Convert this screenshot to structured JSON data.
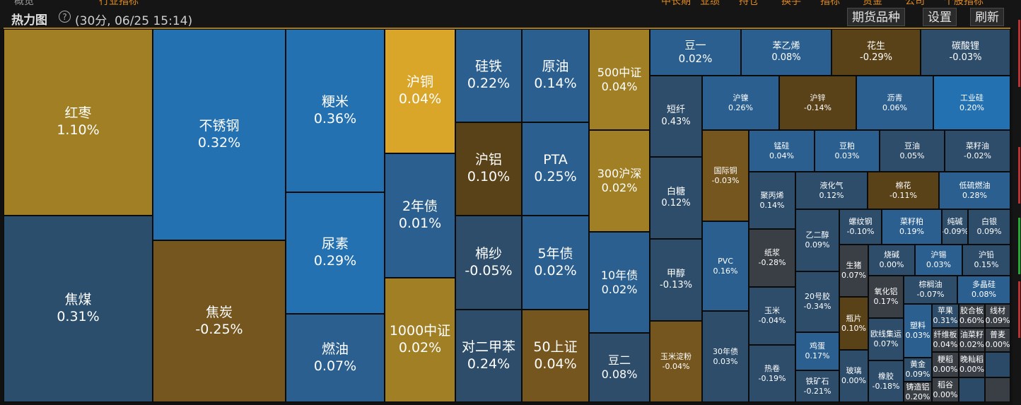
{
  "top_tabs": [
    "概览",
    "行业指标",
    "中长期",
    "业绩",
    "持仓",
    "换手",
    "指标",
    "资金",
    "公司",
    "个股指标"
  ],
  "header": {
    "title": "热力图",
    "help_icon": "question-circle-icon",
    "subtitle": "(30分, 06/25 15:14)",
    "buttons": [
      "期货品种",
      "设置",
      "刷新"
    ]
  },
  "colors": {
    "gold": "#a17f24",
    "gold_bright": "#d9a62a",
    "brown": "#76561f",
    "brown_dark": "#5a4218",
    "blue": "#2471b2",
    "blue_mid": "#2a5f8f",
    "slate": "#2d4d6a",
    "slate_dark": "#2a3f55",
    "gray": "#3a3f46"
  },
  "chart_data": {
    "type": "heatmap",
    "tiles": [
      {
        "name": "红枣",
        "value": "1.10%",
        "color": "#a17f24"
      },
      {
        "name": "焦煤",
        "value": "0.31%",
        "color": "#2c4e6d"
      },
      {
        "name": "不锈钢",
        "value": "0.32%",
        "color": "#2471b2"
      },
      {
        "name": "焦炭",
        "value": "-0.25%",
        "color": "#76561f"
      },
      {
        "name": "粳米",
        "value": "0.36%",
        "color": "#2471b2"
      },
      {
        "name": "尿素",
        "value": "0.29%",
        "color": "#2471b2"
      },
      {
        "name": "燃油",
        "value": "0.07%",
        "color": "#2a5f8f"
      },
      {
        "name": "沪铜",
        "value": "0.04%",
        "color": "#d9a62a"
      },
      {
        "name": "2年债",
        "value": "0.01%",
        "color": "#2a5f8f"
      },
      {
        "name": "1000中证",
        "value": "0.02%",
        "color": "#a17f24"
      },
      {
        "name": "硅铁",
        "value": "0.22%",
        "color": "#2a5f8f"
      },
      {
        "name": "原油",
        "value": "0.14%",
        "color": "#2a5f8f"
      },
      {
        "name": "沪铝",
        "value": "0.10%",
        "color": "#5a4218"
      },
      {
        "name": "PTA",
        "value": "0.25%",
        "color": "#2a5f8f"
      },
      {
        "name": "棉纱",
        "value": "-0.05%",
        "color": "#2d4d6a"
      },
      {
        "name": "5年债",
        "value": "0.02%",
        "color": "#2a5f8f"
      },
      {
        "name": "对二甲苯",
        "value": "0.24%",
        "color": "#2d4d6a"
      },
      {
        "name": "50上证",
        "value": "0.04%",
        "color": "#76561f"
      },
      {
        "name": "500中证",
        "value": "0.04%",
        "color": "#a17f24"
      },
      {
        "name": "300沪深",
        "value": "0.02%",
        "color": "#a17f24"
      },
      {
        "name": "10年债",
        "value": "0.02%",
        "color": "#2a5f8f"
      },
      {
        "name": "豆二",
        "value": "0.08%",
        "color": "#2d4d6a"
      },
      {
        "name": "豆一",
        "value": "0.02%",
        "color": "#2a5f8f"
      },
      {
        "name": "苯乙烯",
        "value": "0.08%",
        "color": "#2a5f8f"
      },
      {
        "name": "花生",
        "value": "-0.29%",
        "color": "#5a4218"
      },
      {
        "name": "碳酸锂",
        "value": "-0.03%",
        "color": "#2d4d6a"
      },
      {
        "name": "短纤",
        "value": "0.43%",
        "color": "#2d4d6a"
      },
      {
        "name": "沪镍",
        "value": "0.26%",
        "color": "#2a5f8f"
      },
      {
        "name": "沪锌",
        "value": "-0.14%",
        "color": "#5a4218"
      },
      {
        "name": "沥青",
        "value": "0.06%",
        "color": "#2a5f8f"
      },
      {
        "name": "工业硅",
        "value": "0.20%",
        "color": "#2471b2"
      },
      {
        "name": "白糖",
        "value": "0.12%",
        "color": "#2d4d6a"
      },
      {
        "name": "国际铜",
        "value": "-0.03%",
        "color": "#76561f"
      },
      {
        "name": "锰硅",
        "value": "0.04%",
        "color": "#2a5f8f"
      },
      {
        "name": "豆粕",
        "value": "0.03%",
        "color": "#2a5f8f"
      },
      {
        "name": "豆油",
        "value": "0.05%",
        "color": "#2d4d6a"
      },
      {
        "name": "菜籽油",
        "value": "-0.02%",
        "color": "#2d4d6a"
      },
      {
        "name": "聚丙烯",
        "value": "0.14%",
        "color": "#2d4d6a"
      },
      {
        "name": "液化气",
        "value": "0.12%",
        "color": "#2d4d6a"
      },
      {
        "name": "棉花",
        "value": "-0.11%",
        "color": "#5a4218"
      },
      {
        "name": "低硫燃油",
        "value": "0.28%",
        "color": "#2a5f8f"
      },
      {
        "name": "甲醇",
        "value": "-0.13%",
        "color": "#2d4d6a"
      },
      {
        "name": "PVC",
        "value": "0.16%",
        "color": "#2a5f8f"
      },
      {
        "name": "纸浆",
        "value": "-0.28%",
        "color": "#3a3f46"
      },
      {
        "name": "乙二醇",
        "value": "0.09%",
        "color": "#2d4d6a"
      },
      {
        "name": "螺纹钢",
        "value": "-0.10%",
        "color": "#2d4d6a"
      },
      {
        "name": "菜籽粕",
        "value": "0.19%",
        "color": "#2a5f8f"
      },
      {
        "name": "纯碱",
        "value": "-0.09%",
        "color": "#2d4d6a"
      },
      {
        "name": "白银",
        "value": "0.09%",
        "color": "#2d4d6a"
      },
      {
        "name": "生猪",
        "value": "0.07%",
        "color": "#3a3f46"
      },
      {
        "name": "烧碱",
        "value": "0.00%",
        "color": "#2d4d6a"
      },
      {
        "name": "沪锡",
        "value": "0.03%",
        "color": "#2a5f8f"
      },
      {
        "name": "沪铅",
        "value": "0.15%",
        "color": "#2d4d6a"
      },
      {
        "name": "玉米淀粉",
        "value": "-0.04%",
        "color": "#76561f"
      },
      {
        "name": "30年债",
        "value": "0.03%",
        "color": "#2d4d6a"
      },
      {
        "name": "玉米",
        "value": "-0.04%",
        "color": "#2d4d6a"
      },
      {
        "name": "20号胶",
        "value": "-0.34%",
        "color": "#2d4d6a"
      },
      {
        "name": "氧化铝",
        "value": "0.17%",
        "color": "#3a3f46"
      },
      {
        "name": "棕榈油",
        "value": "-0.07%",
        "color": "#2d4d6a"
      },
      {
        "name": "多晶硅",
        "value": "0.08%",
        "color": "#2a5f8f"
      },
      {
        "name": "瓶片",
        "value": "0.10%",
        "color": "#5a4218"
      },
      {
        "name": "欧线集运",
        "value": "0.07%",
        "color": "#2d4d6a"
      },
      {
        "name": "塑料",
        "value": "0.03%",
        "color": "#2a5f8f"
      },
      {
        "name": "苹果",
        "value": "0.31%",
        "color": "#2d4d6a"
      },
      {
        "name": "胶合板",
        "value": "0.60%",
        "color": "#3a3f46"
      },
      {
        "name": "线材",
        "value": "0.09%",
        "color": "#3a3f46"
      },
      {
        "name": "热卷",
        "value": "-0.19%",
        "color": "#2d4d6a"
      },
      {
        "name": "鸡蛋",
        "value": "0.17%",
        "color": "#2a5f8f"
      },
      {
        "name": "纤维板",
        "value": "0.04%",
        "color": "#3a3f46"
      },
      {
        "name": "油菜籽",
        "value": "0.02%",
        "color": "#3a3f46"
      },
      {
        "name": "普麦",
        "value": "0.00%",
        "color": "#3a3f46"
      },
      {
        "name": "黄金",
        "value": "0.09%",
        "color": "#2d4d6a"
      },
      {
        "name": "粳稻",
        "value": "0.00%",
        "color": "#3a3f46"
      },
      {
        "name": "晚籼稻",
        "value": "0.00%",
        "color": "#3a3f46"
      },
      {
        "name": "铁矿石",
        "value": "-0.21%",
        "color": "#2d4d6a"
      },
      {
        "name": "玻璃",
        "value": "0.00%",
        "color": "#2d4d6a"
      },
      {
        "name": "橡胶",
        "value": "-0.18%",
        "color": "#2d4d6a"
      },
      {
        "name": "铸造铝",
        "value": "0.20%",
        "color": "#3a3f46"
      },
      {
        "name": "稻谷",
        "value": "0.00%",
        "color": "#3a3f46"
      },
      {
        "name": "",
        "value": "",
        "color": "#2a4a68"
      },
      {
        "name": "",
        "value": "",
        "color": "#2a4a68"
      },
      {
        "name": "",
        "value": "",
        "color": "#3a3f46"
      }
    ]
  }
}
